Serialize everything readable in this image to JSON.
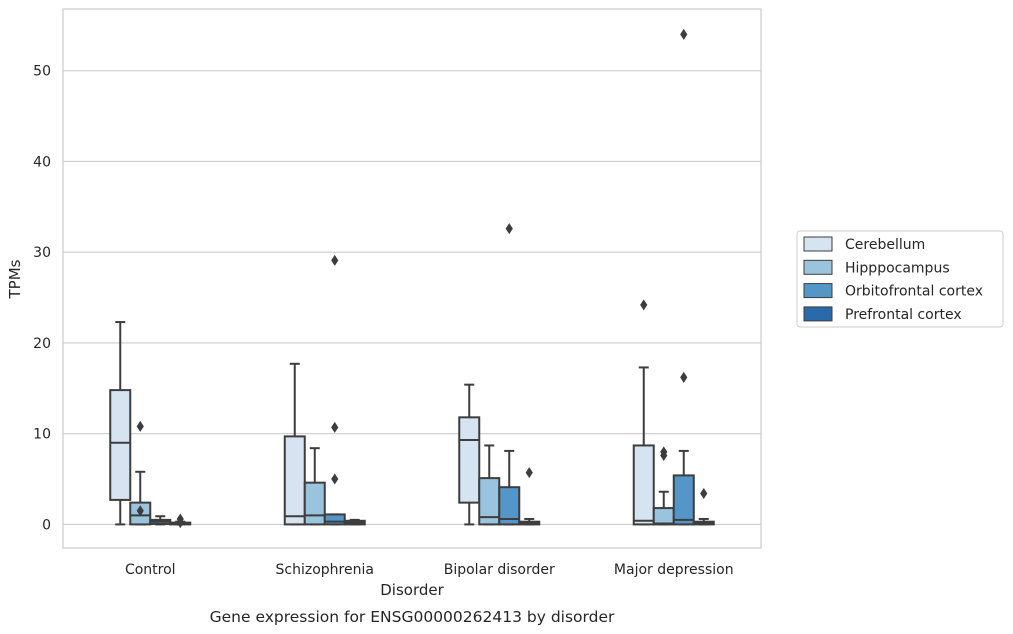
{
  "chart_data": {
    "type": "box",
    "title": "Gene expression for ENSG00000262413 by disorder",
    "xlabel": "Disorder",
    "ylabel": "TPMs",
    "ylim": [
      -2.6,
      56.8
    ],
    "yticks": [
      0,
      10,
      20,
      30,
      40,
      50
    ],
    "grid": true,
    "legend_position": "right",
    "categories": [
      "Control",
      "Schizophrenia",
      "Bipolar disorder",
      "Major depression"
    ],
    "series": [
      {
        "name": "Cerebellum",
        "color": "#d6e4f2",
        "boxes": [
          {
            "whislo": 0,
            "q1": 2.7,
            "med": 9.0,
            "q3": 14.8,
            "whishi": 22.3,
            "fliers": []
          },
          {
            "whislo": 0,
            "q1": 0,
            "med": 0.9,
            "q3": 9.7,
            "whishi": 17.7,
            "fliers": []
          },
          {
            "whislo": 0,
            "q1": 2.4,
            "med": 9.3,
            "q3": 11.8,
            "whishi": 15.4,
            "fliers": []
          },
          {
            "whislo": 0,
            "q1": 0,
            "med": 0.4,
            "q3": 8.7,
            "whishi": 17.3,
            "fliers": [
              24.2
            ]
          }
        ]
      },
      {
        "name": "Hipppocampus",
        "color": "#9ac4de",
        "boxes": [
          {
            "whislo": 0,
            "q1": 0,
            "med": 1.0,
            "q3": 2.4,
            "whishi": 5.8,
            "fliers": [
              10.8,
              1.5
            ]
          },
          {
            "whislo": 0,
            "q1": 0,
            "med": 1.0,
            "q3": 4.6,
            "whishi": 8.4,
            "fliers": []
          },
          {
            "whislo": 0,
            "q1": 0,
            "med": 0.8,
            "q3": 5.1,
            "whishi": 8.7,
            "fliers": []
          },
          {
            "whislo": 0,
            "q1": 0,
            "med": 0.1,
            "q3": 1.8,
            "whishi": 3.6,
            "fliers": [
              8.0,
              7.6
            ]
          }
        ]
      },
      {
        "name": "Orbitofrontal cortex",
        "color": "#5496c8",
        "boxes": [
          {
            "whislo": 0,
            "q1": 0.05,
            "med": 0.3,
            "q3": 0.5,
            "whishi": 0.9,
            "fliers": []
          },
          {
            "whislo": 0,
            "q1": 0,
            "med": 0.3,
            "q3": 1.1,
            "whishi": 1.1,
            "fliers": [
              29.1,
              10.7,
              5.0
            ]
          },
          {
            "whislo": 0,
            "q1": 0,
            "med": 0.6,
            "q3": 4.1,
            "whishi": 8.1,
            "fliers": [
              32.6
            ]
          },
          {
            "whislo": 0,
            "q1": 0,
            "med": 0.5,
            "q3": 5.4,
            "whishi": 8.1,
            "fliers": [
              54.0,
              16.2
            ]
          }
        ]
      },
      {
        "name": "Prefrontal cortex",
        "color": "#2b6aaa",
        "boxes": [
          {
            "whislo": 0,
            "q1": 0,
            "med": 0.1,
            "q3": 0.2,
            "whishi": 0.3,
            "fliers": [
              0.6,
              0.2
            ]
          },
          {
            "whislo": 0,
            "q1": 0,
            "med": 0.2,
            "q3": 0.4,
            "whishi": 0.5,
            "fliers": []
          },
          {
            "whislo": 0,
            "q1": 0,
            "med": 0.1,
            "q3": 0.3,
            "whishi": 0.6,
            "fliers": [
              5.7
            ]
          },
          {
            "whislo": 0,
            "q1": 0,
            "med": 0.1,
            "q3": 0.3,
            "whishi": 0.6,
            "fliers": [
              3.4
            ]
          }
        ]
      }
    ]
  }
}
